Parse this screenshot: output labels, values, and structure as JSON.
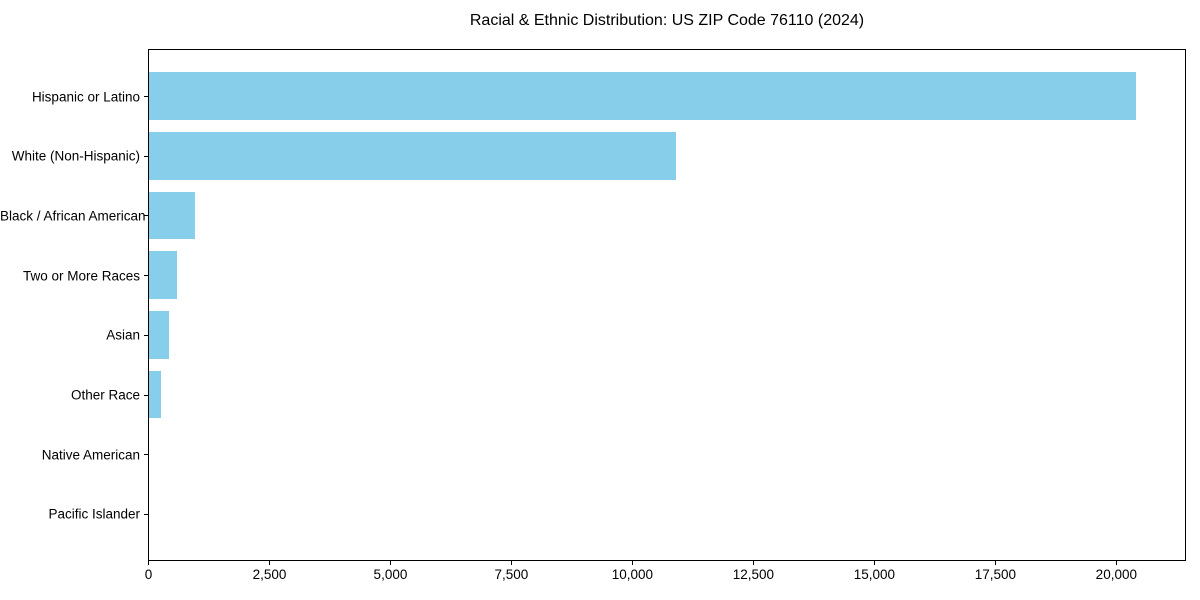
{
  "chart_data": {
    "type": "bar",
    "orientation": "horizontal",
    "title": "Racial & Ethnic Distribution: US ZIP Code 76110 (2024)",
    "categories": [
      "Hispanic or Latino",
      "White (Non-Hispanic)",
      "Black / African American",
      "Two or More Races",
      "Asian",
      "Other Race",
      "Native American",
      "Pacific Islander"
    ],
    "values": [
      20400,
      10900,
      950,
      580,
      410,
      250,
      0,
      0
    ],
    "bar_color": "#87CEEB",
    "xlabel": "",
    "ylabel": "",
    "xlim": [
      0,
      21450
    ],
    "x_ticks": [
      0,
      2500,
      5000,
      7500,
      10000,
      12500,
      15000,
      17500,
      20000
    ],
    "x_tick_labels": [
      "0",
      "2,500",
      "5,000",
      "7,500",
      "10,000",
      "12,500",
      "15,000",
      "17,500",
      "20,000"
    ],
    "grid": false,
    "legend": "none",
    "axis_color": "#000000",
    "text_color": "#000000",
    "background_color": "#ffffff"
  }
}
